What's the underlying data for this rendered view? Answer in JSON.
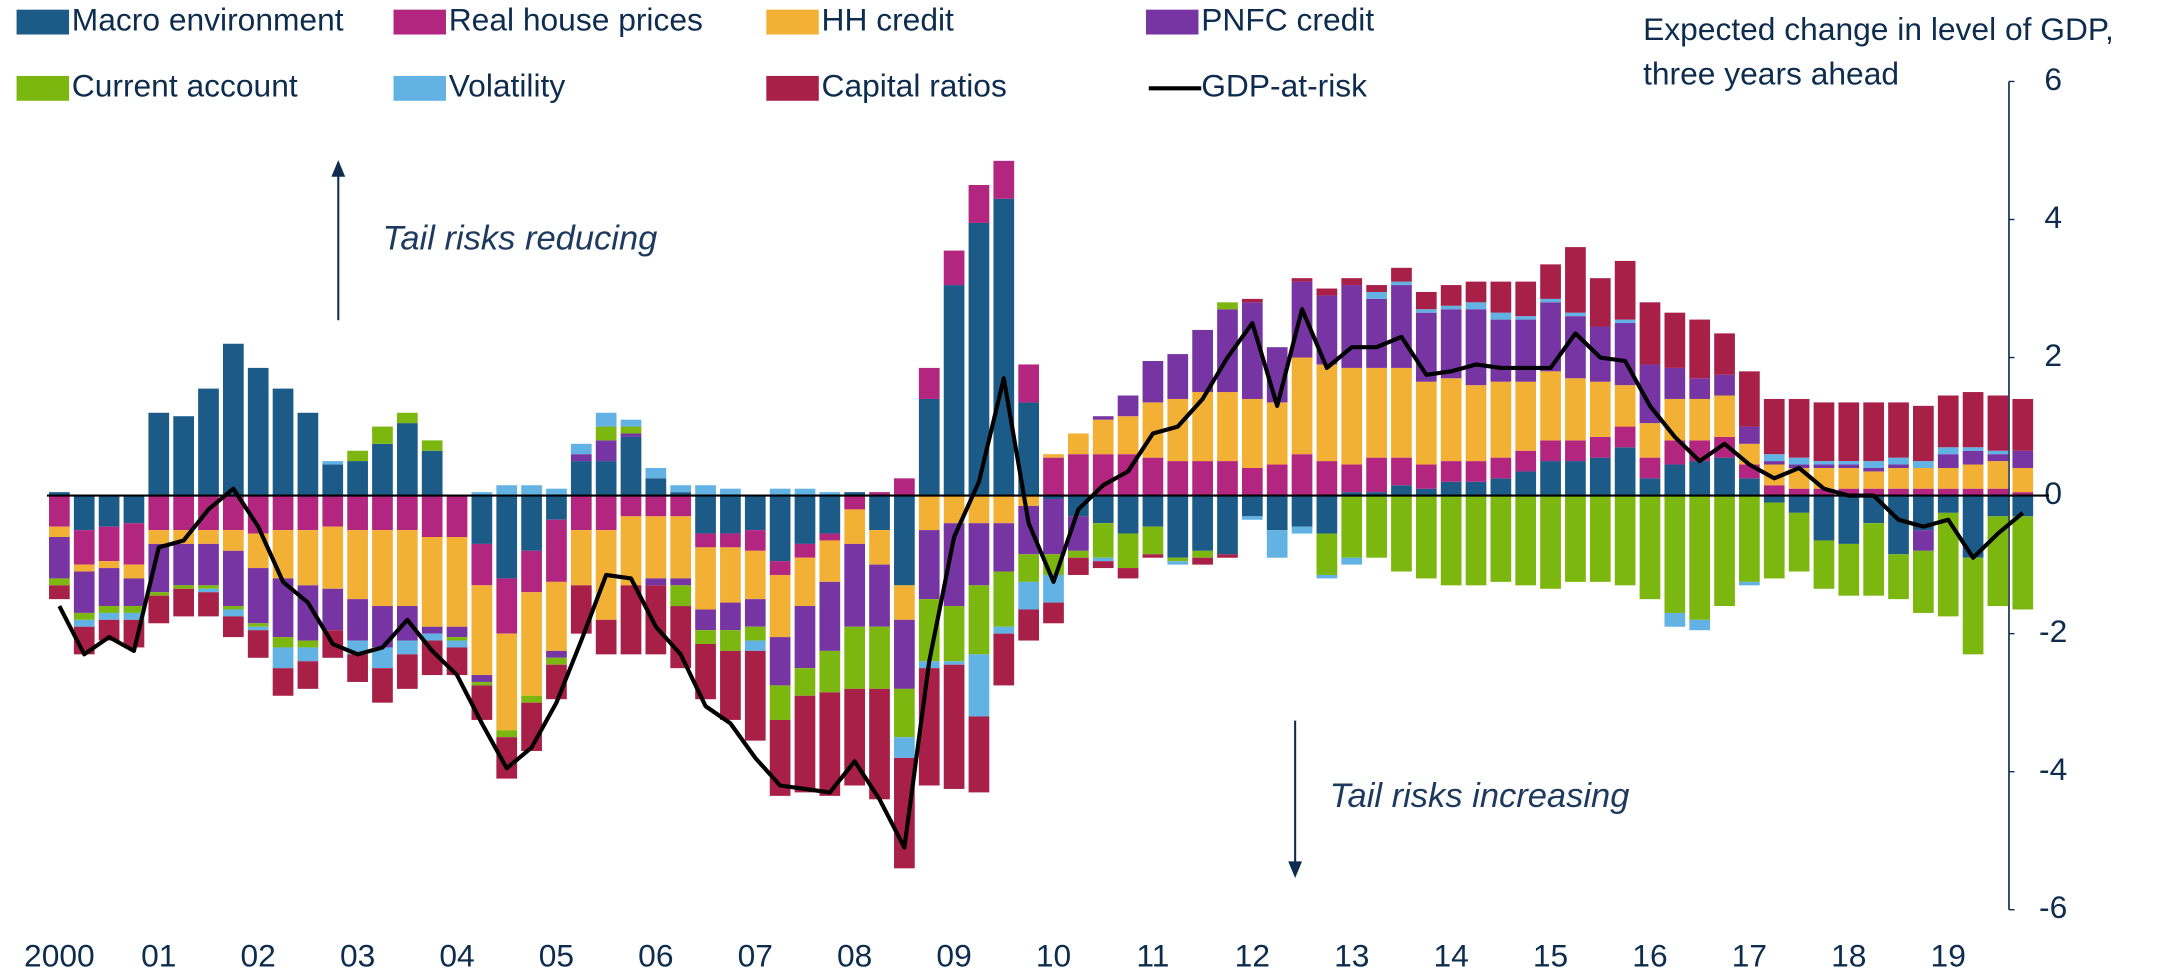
{
  "chart_data": {
    "type": "bar",
    "stacked": true,
    "y_label": [
      "Expected change in level of GDP,",
      "three years ahead"
    ],
    "annotations": [
      "Tail risks reducing",
      "Tail risks increasing"
    ],
    "ylim": [
      -6,
      6
    ],
    "yticks": [
      6,
      4,
      2,
      0,
      -2,
      -4,
      -6
    ],
    "categories": [
      "2000",
      null,
      null,
      null,
      "01",
      null,
      null,
      null,
      "02",
      null,
      null,
      null,
      "03",
      null,
      null,
      null,
      "04",
      null,
      null,
      null,
      "05",
      null,
      null,
      null,
      "06",
      null,
      null,
      null,
      "07",
      null,
      null,
      null,
      "08",
      null,
      null,
      null,
      "09",
      null,
      null,
      null,
      "10",
      null,
      null,
      null,
      "11",
      null,
      null,
      null,
      "12",
      null,
      null,
      null,
      "13",
      null,
      null,
      null,
      "14",
      null,
      null,
      null,
      "15",
      null,
      null,
      null,
      "16",
      null,
      null,
      null,
      "17",
      null,
      null,
      null,
      "18",
      null,
      null,
      null,
      "19",
      null,
      null,
      null
    ],
    "series": [
      {
        "name": "Macro environment",
        "color": "#1c5b88",
        "values": [
          0.05,
          -0.5,
          -0.45,
          -0.4,
          1.2,
          1.15,
          1.55,
          2.2,
          1.85,
          1.55,
          1.2,
          0.45,
          0.5,
          0.75,
          1.05,
          0.65,
          0,
          -0.7,
          -1.2,
          -0.8,
          -0.35,
          0.5,
          0.5,
          0.85,
          0.25,
          0.05,
          -0.55,
          -0.55,
          -0.5,
          -0.95,
          -0.7,
          -0.55,
          0.05,
          -0.5,
          -1.3,
          1.4,
          3.05,
          3.95,
          4.3,
          1.35,
          -0.05,
          -0.3,
          -0.4,
          -0.55,
          -0.45,
          -0.9,
          -0.8,
          -0.85,
          -0.3,
          -0.5,
          -0.45,
          -0.55,
          0.05,
          0.05,
          0.15,
          0.1,
          0.2,
          0.2,
          0.25,
          0.35,
          0.5,
          0.5,
          0.55,
          0.7,
          0.25,
          0.45,
          0.5,
          0.55,
          0.25,
          -0.1,
          -0.25,
          -0.65,
          -0.7,
          -0.4,
          -0.85,
          -0.5,
          -0.25,
          -0.9,
          -0.3,
          -0.3
        ]
      },
      {
        "name": "Real house prices",
        "color": "#b3267f",
        "values": [
          -0.45,
          -0.5,
          -0.5,
          -0.6,
          -0.5,
          -0.5,
          -0.5,
          -0.5,
          -0.55,
          -0.5,
          -0.5,
          -0.45,
          -0.5,
          -0.5,
          -0.5,
          -0.6,
          -0.6,
          -0.6,
          -0.8,
          -0.6,
          -0.9,
          -0.5,
          -0.5,
          -0.3,
          -0.3,
          -0.3,
          -0.2,
          -0.2,
          -0.3,
          -0.2,
          -0.2,
          -0.1,
          -0.2,
          0.05,
          0.25,
          0.45,
          0.5,
          0.55,
          0.55,
          0.55,
          0.55,
          0.6,
          0.6,
          0.6,
          0.55,
          0.5,
          0.5,
          0.5,
          0.4,
          0.45,
          0.6,
          0.5,
          0.4,
          0.5,
          0.4,
          0.35,
          0.3,
          0.3,
          0.3,
          0.3,
          0.3,
          0.3,
          0.3,
          0.3,
          0.3,
          0.35,
          0.3,
          0.3,
          0.2,
          0.15,
          0.1,
          0.1,
          0.1,
          0.1,
          0.1,
          0.1,
          0.1,
          0.1,
          0.1,
          0.05
        ]
      },
      {
        "name": "HH credit",
        "color": "#f2b135",
        "values": [
          -0.15,
          -0.1,
          -0.1,
          -0.2,
          -0.2,
          -0.2,
          -0.2,
          -0.3,
          -0.5,
          -0.7,
          -0.8,
          -0.9,
          -1.0,
          -1.1,
          -1.1,
          -1.3,
          -1.3,
          -1.3,
          -1.4,
          -1.5,
          -1.0,
          -0.8,
          -1.3,
          -1.0,
          -0.9,
          -0.9,
          -0.9,
          -0.8,
          -0.7,
          -0.9,
          -0.7,
          -0.6,
          -0.5,
          -0.5,
          -0.5,
          -0.5,
          -0.4,
          -0.4,
          -0.4,
          -0.15,
          0.05,
          0.3,
          0.5,
          0.55,
          0.8,
          0.9,
          1.0,
          1.0,
          1.0,
          0.9,
          1.4,
          1.4,
          1.4,
          1.3,
          1.3,
          1.2,
          1.2,
          1.1,
          1.1,
          1.0,
          1.0,
          0.9,
          0.8,
          0.6,
          0.5,
          0.6,
          0.6,
          0.6,
          0.3,
          0.3,
          0.3,
          0.3,
          0.3,
          0.25,
          0.3,
          0.3,
          0.3,
          0.35,
          0.4,
          0.35
        ]
      },
      {
        "name": "PNFC credit",
        "color": "#7635a3",
        "values": [
          -0.6,
          -0.6,
          -0.55,
          -0.4,
          -0.7,
          -0.6,
          -0.6,
          -0.8,
          -0.8,
          -0.85,
          -0.8,
          -0.6,
          -0.6,
          -0.6,
          -0.5,
          -0.1,
          -0.15,
          -0.1,
          0,
          0,
          -0.1,
          0.1,
          0.3,
          0.05,
          -0.1,
          -0.1,
          -0.3,
          -0.4,
          -0.4,
          -0.7,
          -0.9,
          -1.0,
          -1.2,
          -0.9,
          -1.0,
          -1.0,
          -1.2,
          -0.9,
          -0.7,
          -0.7,
          -0.8,
          -0.5,
          0.05,
          0.3,
          0.6,
          0.65,
          0.9,
          1.2,
          1.4,
          0.8,
          1.1,
          1.0,
          1.2,
          1.0,
          1.2,
          1.0,
          1.0,
          1.1,
          0.9,
          0.9,
          1.0,
          0.9,
          0.8,
          0.9,
          0.85,
          0.45,
          0.3,
          0.3,
          0.25,
          0.05,
          0.05,
          0.05,
          0.05,
          0.05,
          0.05,
          -0.3,
          0.2,
          0.2,
          0.1,
          0.25
        ]
      },
      {
        "name": "Current account",
        "color": "#7cb70f",
        "values": [
          -0.1,
          -0.1,
          -0.1,
          -0.1,
          -0.05,
          -0.05,
          -0.05,
          -0.05,
          -0.05,
          -0.15,
          -0.1,
          0,
          0.15,
          0.25,
          0.15,
          0.15,
          -0.05,
          -0.05,
          -0.1,
          -0.1,
          -0.1,
          0,
          0.2,
          0.1,
          0,
          -0.3,
          -0.2,
          -0.3,
          -0.2,
          -0.5,
          -0.4,
          -0.6,
          -0.9,
          -0.9,
          -0.7,
          -0.9,
          -0.8,
          -1.0,
          -0.8,
          -0.4,
          -0.3,
          -0.1,
          -0.5,
          -0.5,
          -0.4,
          -0.05,
          -0.1,
          0.1,
          0,
          0,
          0,
          -0.6,
          -0.9,
          -0.9,
          -1.1,
          -1.2,
          -1.3,
          -1.3,
          -1.25,
          -1.3,
          -1.35,
          -1.25,
          -1.25,
          -1.3,
          -1.5,
          -1.7,
          -1.8,
          -1.6,
          -1.25,
          -1.1,
          -0.85,
          -0.7,
          -0.75,
          -1.05,
          -0.65,
          -0.9,
          -1.5,
          -1.4,
          -1.3,
          -1.35
        ]
      },
      {
        "name": "Volatility",
        "color": "#62b3e3",
        "values": [
          0,
          -0.1,
          -0.1,
          -0.1,
          0,
          0,
          -0.05,
          -0.1,
          -0.05,
          -0.3,
          -0.2,
          0.05,
          -0.2,
          -0.3,
          -0.2,
          -0.1,
          -0.1,
          0.05,
          0.15,
          0.15,
          0.1,
          0.15,
          0.2,
          0.1,
          0.15,
          0.1,
          0.15,
          0.1,
          -0.15,
          0.1,
          0.1,
          0.05,
          0,
          0,
          -0.3,
          -0.1,
          -0.05,
          -0.9,
          -0.1,
          -0.4,
          -0.4,
          0,
          -0.05,
          0,
          0,
          -0.05,
          0,
          0,
          -0.05,
          -0.4,
          -0.1,
          -0.05,
          -0.1,
          0.1,
          0.05,
          0.05,
          0.05,
          0.1,
          0.1,
          0.05,
          0.05,
          0.05,
          0,
          0.05,
          0,
          -0.2,
          -0.15,
          0,
          -0.05,
          0.1,
          0.1,
          0.05,
          0.05,
          0.1,
          0.1,
          0.1,
          0.1,
          0.05,
          0.05,
          0
        ]
      },
      {
        "name": "Capital ratios",
        "color": "#a81f47",
        "values": [
          -0.2,
          -0.4,
          -0.3,
          -0.4,
          -0.4,
          -0.4,
          -0.35,
          -0.3,
          -0.4,
          -0.4,
          -0.4,
          -0.4,
          -0.4,
          -0.5,
          -0.5,
          -0.5,
          -0.4,
          -0.5,
          -0.6,
          -0.7,
          -0.5,
          -0.7,
          -0.5,
          -1.0,
          -1.0,
          -0.9,
          -0.8,
          -1.0,
          -1.3,
          -1.1,
          -1.4,
          -1.5,
          -1.4,
          -1.6,
          -1.6,
          -1.7,
          -1.8,
          -1.1,
          -0.75,
          -0.45,
          -0.3,
          -0.25,
          -0.1,
          -0.15,
          -0.05,
          0,
          -0.1,
          -0.05,
          0.05,
          0,
          0.05,
          0.1,
          0.1,
          0.1,
          0.2,
          0.25,
          0.3,
          0.3,
          0.45,
          0.5,
          0.5,
          0.95,
          0.7,
          0.85,
          0.9,
          0.8,
          0.85,
          0.6,
          0.8,
          0.8,
          0.85,
          0.85,
          0.85,
          0.85,
          0.8,
          0.8,
          0.75,
          0.8,
          0.8,
          0.75
        ]
      },
      {
        "name": "GDP-at-risk",
        "type": "line",
        "color": "#000000",
        "values": [
          -1.6,
          -2.3,
          -2.05,
          -2.25,
          -0.75,
          -0.65,
          -0.2,
          0.1,
          -0.45,
          -1.25,
          -1.55,
          -2.15,
          -2.3,
          -2.2,
          -1.8,
          -2.25,
          -2.6,
          -3.3,
          -3.95,
          -3.65,
          -3.0,
          -2.1,
          -1.15,
          -1.2,
          -1.9,
          -2.3,
          -3.05,
          -3.3,
          -3.8,
          -4.2,
          -4.25,
          -4.3,
          -3.85,
          -4.4,
          -5.1,
          -2.4,
          -0.6,
          0.2,
          1.7,
          -0.4,
          -1.25,
          -0.2,
          0.15,
          0.35,
          0.9,
          1.0,
          1.4,
          2.0,
          2.5,
          1.3,
          2.7,
          1.85,
          2.15,
          2.15,
          2.3,
          1.75,
          1.8,
          1.9,
          1.85,
          1.85,
          1.85,
          2.35,
          2.0,
          1.95,
          1.3,
          0.85,
          0.5,
          0.75,
          0.45,
          0.25,
          0.4,
          0.1,
          0.0,
          0.0,
          -0.35,
          -0.45,
          -0.35,
          -0.9,
          -0.55,
          -0.25
        ]
      }
    ]
  }
}
